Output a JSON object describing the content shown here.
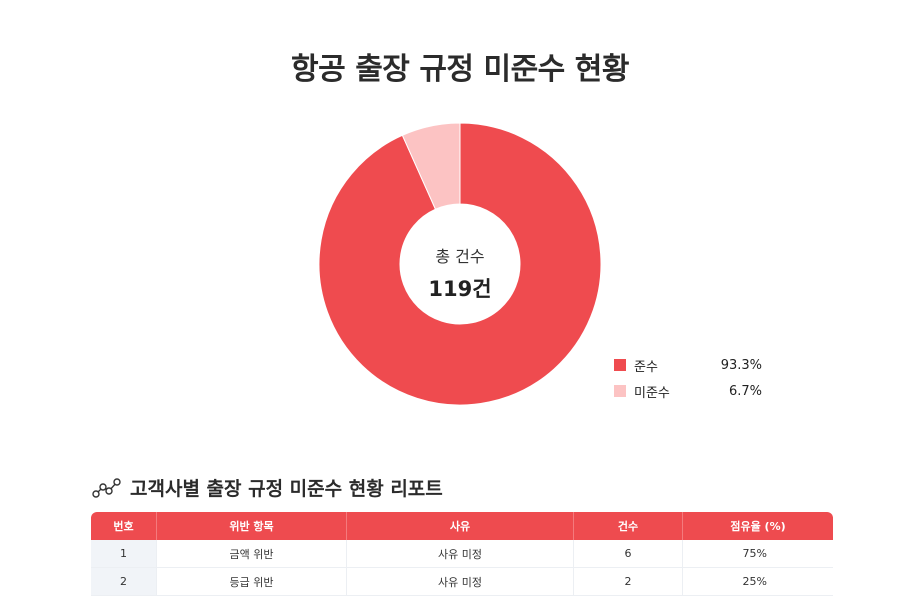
{
  "title": "항공 출장 규정 미준수 현황",
  "colors": {
    "compliant": "#ef4b4f",
    "noncompliant": "#fcc3c3",
    "header": "#ee4b4f"
  },
  "chart_data": {
    "type": "pie",
    "variant": "donut",
    "center_label": "총 건수",
    "center_value": "119건",
    "slices": [
      {
        "label": "준수",
        "value": 93.3,
        "display": "93.3%",
        "color": "#ef4b4f"
      },
      {
        "label": "미준수",
        "value": 6.7,
        "display": "6.7%",
        "color": "#fcc3c3"
      }
    ],
    "legend_position": "bottom-right"
  },
  "report": {
    "icon": "line-chart-icon",
    "title": "고객사별 출장 규정 미준수 현황 리포트",
    "columns": [
      "번호",
      "위반 항목",
      "사유",
      "건수",
      "점유율 (%)"
    ],
    "rows": [
      [
        "1",
        "금액 위반",
        "사유 미정",
        "6",
        "75%"
      ],
      [
        "2",
        "등급 위반",
        "사유 미정",
        "2",
        "25%"
      ]
    ]
  }
}
